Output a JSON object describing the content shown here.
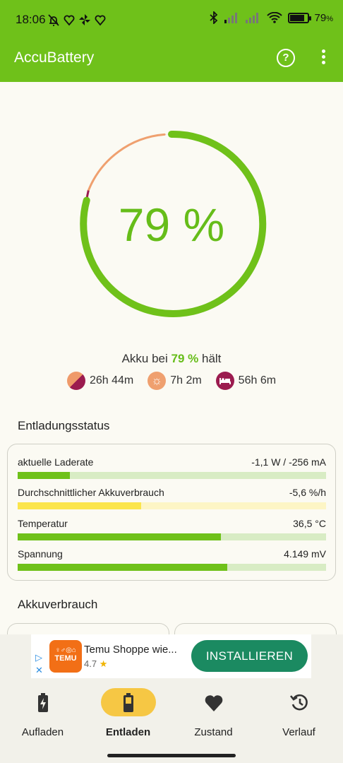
{
  "status_bar": {
    "time": "18:06",
    "battery_text": "79",
    "battery_unit": "%",
    "left_icons": [
      "bell-off-icon",
      "heart-icon",
      "pinwheel-icon",
      "heart-icon"
    ],
    "right_icons": [
      "bluetooth-icon",
      "signal-icon",
      "signal-icon",
      "wifi-icon",
      "battery-icon"
    ]
  },
  "app_bar": {
    "title": "AccuBattery",
    "help_icon": "help-icon",
    "more_icon": "more-vert-icon"
  },
  "gauge": {
    "value_text": "79 %",
    "level_percent": 79,
    "colors": {
      "charge": "#6fc11a",
      "screen_on": "#efa06f",
      "screen_off": "#9b1b4f"
    }
  },
  "hold": {
    "prefix": "Akku bei",
    "percent": "79 %",
    "suffix": "hält"
  },
  "estimates": [
    {
      "icon": "mixed-usage-icon",
      "value": "26h 44m"
    },
    {
      "icon": "screen-on-icon",
      "value": "7h 2m"
    },
    {
      "icon": "sleep-icon",
      "value": "56h 6m"
    }
  ],
  "discharge": {
    "title": "Entladungsstatus",
    "rows": [
      {
        "label": "aktuelle Laderate",
        "value": "-1,1 W / -256 mA",
        "fraction": 0.17,
        "color": "#6fc11a",
        "track": "#d8ecc4"
      },
      {
        "label": "Durchschnittlicher Akkuverbrauch",
        "value": "-5,6 %/h",
        "fraction": 0.4,
        "color": "#fbe54c",
        "track": "#fdf5c5"
      },
      {
        "label": "Temperatur",
        "value": "36,5 °C",
        "fraction": 0.66,
        "color": "#6fc11a",
        "track": "#d8ecc4"
      },
      {
        "label": "Spannung",
        "value": "4.149 mV",
        "fraction": 0.68,
        "color": "#6fc11a",
        "track": "#d8ecc4"
      }
    ]
  },
  "usage": {
    "title": "Akkuverbrauch"
  },
  "ad": {
    "choices_icon": "ad-choices-icon",
    "close_icon": "close-icon",
    "logo_text": "TEMU",
    "logo_symbols": "♀♂◎⌂",
    "title": "Temu Shoppe wie...",
    "rating": "4.7",
    "star": "★",
    "button": "INSTALLIEREN"
  },
  "nav": [
    {
      "label": "Aufladen",
      "icon": "battery-charging-icon"
    },
    {
      "label": "Entladen",
      "icon": "battery-discharging-icon",
      "active": true
    },
    {
      "label": "Zustand",
      "icon": "heart-icon"
    },
    {
      "label": "Verlauf",
      "icon": "history-icon"
    }
  ]
}
